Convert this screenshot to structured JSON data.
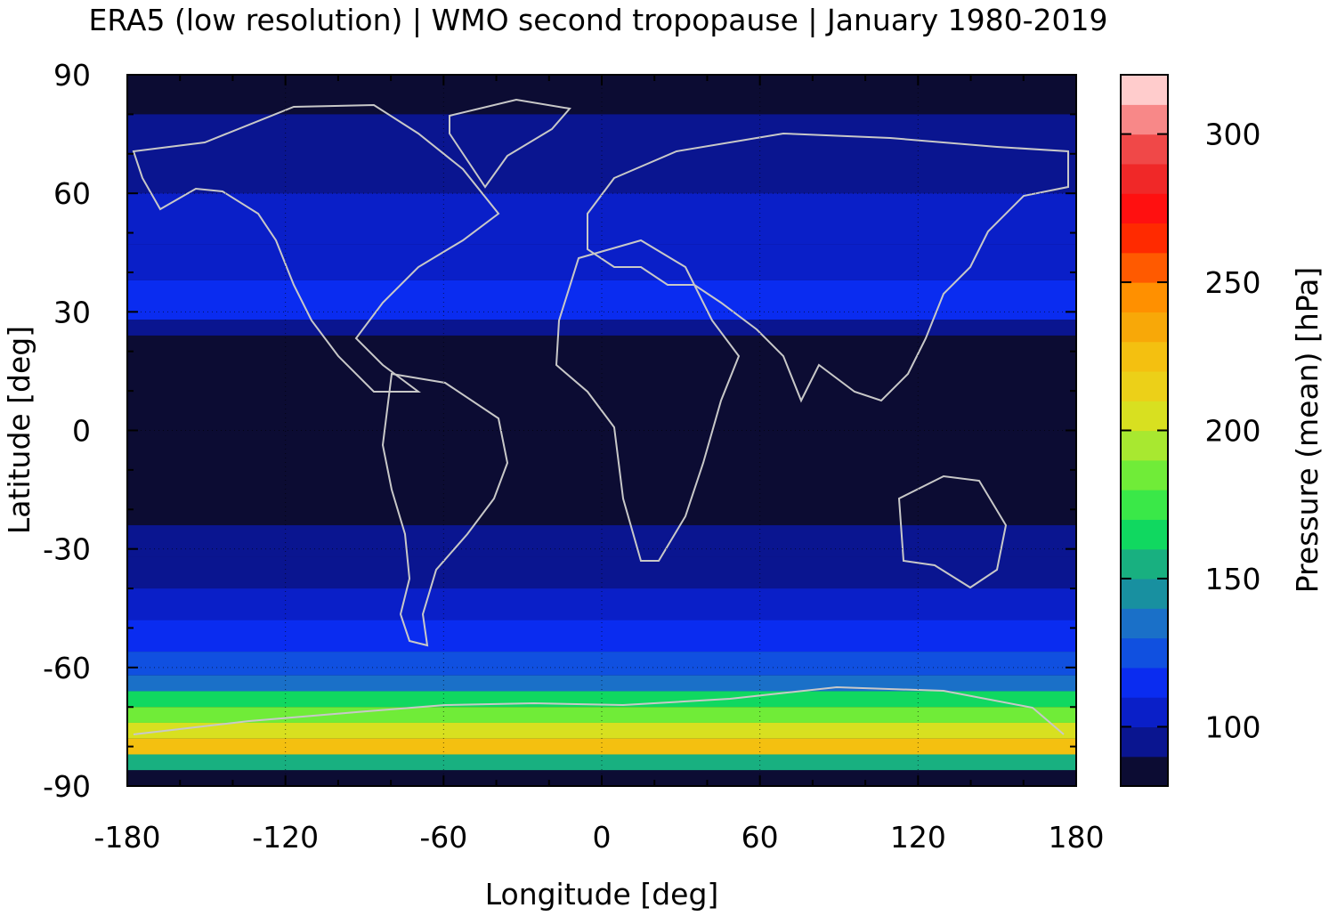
{
  "chart_data": {
    "type": "heatmap",
    "title": "ERA5 (low resolution) | WMO second tropopause | January 1980-2019",
    "xlabel": "Longitude [deg]",
    "ylabel": "Latitude [deg]",
    "colorbar_label": "Pressure (mean) [hPa]",
    "xlim": [
      -180,
      180
    ],
    "ylim": [
      -90,
      90
    ],
    "x_ticks": [
      -180,
      -120,
      -60,
      0,
      60,
      120,
      180
    ],
    "y_ticks": [
      90,
      60,
      30,
      0,
      -30,
      -60,
      -90
    ],
    "colorbar_range": [
      80,
      320
    ],
    "colorbar_ticks": [
      100,
      150,
      200,
      250,
      300
    ],
    "colorbar_levels": [
      "#0c0c33",
      "#0a1590",
      "#0a1fc8",
      "#0a2cf0",
      "#1050e0",
      "#1a70c8",
      "#1890a0",
      "#18b080",
      "#10d860",
      "#3ae848",
      "#70ec38",
      "#a8e830",
      "#d8e020",
      "#ecd018",
      "#f4c010",
      "#f8a808",
      "#ff9000",
      "#ff5a00",
      "#ff2a00",
      "#ff1010",
      "#f02828",
      "#f04848",
      "#f88888",
      "#ffcccc"
    ],
    "grid": true,
    "legend": "colorbar-right",
    "land_outline_color": "#c8c8c8",
    "zonal_bands": [
      {
        "lat_min": 80,
        "lat_max": 90,
        "value": 80
      },
      {
        "lat_min": 60,
        "lat_max": 80,
        "value": 95
      },
      {
        "lat_min": 47,
        "lat_max": 60,
        "value": 100
      },
      {
        "lat_min": 38,
        "lat_max": 47,
        "value": 108
      },
      {
        "lat_min": 28,
        "lat_max": 38,
        "value": 112
      },
      {
        "lat_min": 24,
        "lat_max": 28,
        "value": 98
      },
      {
        "lat_min": -24,
        "lat_max": 24,
        "value": 80
      },
      {
        "lat_min": -32,
        "lat_max": -24,
        "value": 90
      },
      {
        "lat_min": -40,
        "lat_max": -32,
        "value": 98
      },
      {
        "lat_min": -48,
        "lat_max": -40,
        "value": 105
      },
      {
        "lat_min": -56,
        "lat_max": -48,
        "value": 112
      },
      {
        "lat_min": -62,
        "lat_max": -56,
        "value": 122
      },
      {
        "lat_min": -66,
        "lat_max": -62,
        "value": 135
      },
      {
        "lat_min": -70,
        "lat_max": -66,
        "value": 160
      },
      {
        "lat_min": -74,
        "lat_max": -70,
        "value": 180
      },
      {
        "lat_min": -78,
        "lat_max": -74,
        "value": 205
      },
      {
        "lat_min": -82,
        "lat_max": -78,
        "value": 225
      },
      {
        "lat_min": -86,
        "lat_max": -82,
        "value": 150
      },
      {
        "lat_min": -90,
        "lat_max": -86,
        "value": 80
      }
    ]
  }
}
